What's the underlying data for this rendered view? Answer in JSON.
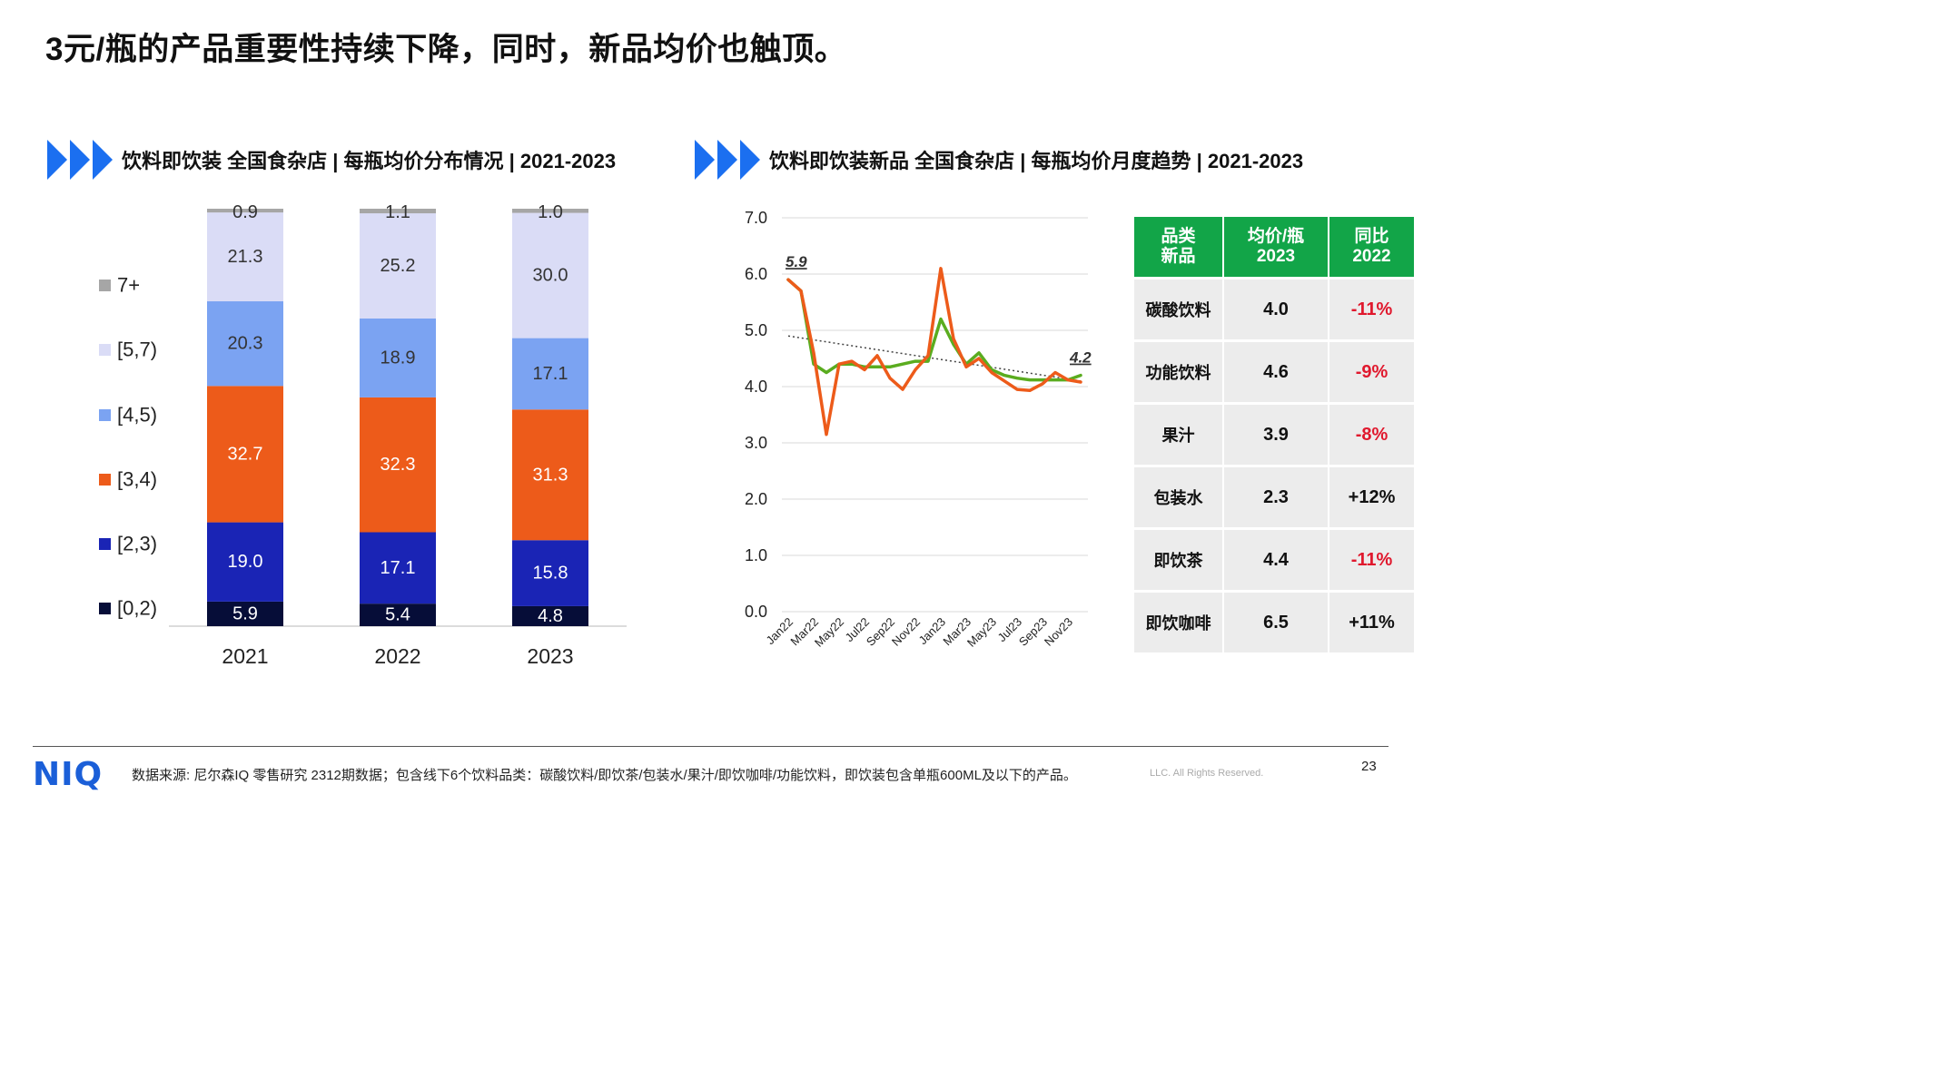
{
  "title": "3元/瓶的产品重要性持续下降，同时，新品均价也触顶。",
  "left_section": {
    "subtitle": "饮料即饮装 全国食杂店 | 每瓶均价分布情况 | 2021-2023"
  },
  "right_section": {
    "subtitle": "饮料即饮装新品 全国食杂店 | 每瓶均价月度趋势 | 2021-2023"
  },
  "colors": {
    "navy": "#060d38",
    "blue": "#1a24b5",
    "orange": "#ed5b1a",
    "mid_blue": "#7ba3f2",
    "lavender": "#dadcf6",
    "grey": "#a6a6a6",
    "green": "#5aac1f",
    "table_green": "#12a548",
    "red": "#e0182d"
  },
  "chart_data": [
    {
      "type": "bar",
      "stacked": true,
      "categories": [
        "2021",
        "2022",
        "2023"
      ],
      "series": [
        {
          "name": "[0,2)",
          "color": "#060d38",
          "values": [
            5.9,
            5.4,
            4.8
          ]
        },
        {
          "name": "[2,3)",
          "color": "#1a24b5",
          "values": [
            19.0,
            17.1,
            15.8
          ]
        },
        {
          "name": "[3,4)",
          "color": "#ed5b1a",
          "values": [
            32.7,
            32.3,
            31.3
          ]
        },
        {
          "name": "[4,5)",
          "color": "#7ba3f2",
          "values": [
            20.3,
            18.9,
            17.1
          ]
        },
        {
          "name": "[5,7)",
          "color": "#dadcf6",
          "values": [
            21.3,
            25.2,
            30.0
          ]
        },
        {
          "name": "7+",
          "color": "#a6a6a6",
          "values": [
            0.9,
            1.1,
            1.0
          ]
        }
      ],
      "legend_placement": "left"
    },
    {
      "type": "line",
      "x": [
        "Jan22",
        "Feb22",
        "Mar22",
        "Apr22",
        "May22",
        "Jun22",
        "Jul22",
        "Aug22",
        "Sep22",
        "Oct22",
        "Nov22",
        "Dec22",
        "Jan23",
        "Feb23",
        "Mar23",
        "Apr23",
        "May23",
        "Jun23",
        "Jul23",
        "Aug23",
        "Sep23",
        "Oct23",
        "Nov23",
        "Dec23"
      ],
      "tick_labels": [
        "Jan22",
        "Mar22",
        "May22",
        "Jul22",
        "Sep22",
        "Nov22",
        "Jan23",
        "Mar23",
        "May23",
        "Jul23",
        "Sep23",
        "Nov23"
      ],
      "series": [
        {
          "color": "#5aac1f",
          "values": [
            5.9,
            5.7,
            4.4,
            4.25,
            4.4,
            4.4,
            4.35,
            4.35,
            4.35,
            4.4,
            4.45,
            4.45,
            5.2,
            4.75,
            4.4,
            4.6,
            4.3,
            4.2,
            4.15,
            4.12,
            4.12,
            4.12,
            4.12,
            4.2
          ]
        },
        {
          "color": "#ed5b1a",
          "values": [
            5.9,
            5.7,
            4.6,
            3.15,
            4.4,
            4.45,
            4.3,
            4.55,
            4.15,
            3.95,
            4.3,
            4.55,
            6.1,
            4.85,
            4.35,
            4.5,
            4.25,
            4.1,
            3.95,
            3.93,
            4.05,
            4.25,
            4.12,
            4.08
          ]
        }
      ],
      "trendline": {
        "style": "dotted",
        "from": 4.9,
        "to": 4.1
      },
      "annotations": [
        {
          "label": "5.9",
          "at": "Jan22",
          "value": 5.9
        },
        {
          "label": "4.2",
          "at": "Dec23",
          "value": 4.2
        }
      ],
      "ylim": [
        0,
        7
      ],
      "yticks": [
        "0.0",
        "1.0",
        "2.0",
        "3.0",
        "4.0",
        "5.0",
        "6.0",
        "7.0"
      ],
      "grid": true
    },
    {
      "type": "table",
      "headers": [
        "品类\n新品",
        "均价/瓶\n2023",
        "同比\n2022"
      ],
      "rows": [
        {
          "category": "碳酸饮料",
          "price": "4.0",
          "yoy": "-11%",
          "negative": true
        },
        {
          "category": "功能饮料",
          "price": "4.6",
          "yoy": "-9%",
          "negative": true
        },
        {
          "category": "果汁",
          "price": "3.9",
          "yoy": "-8%",
          "negative": true
        },
        {
          "category": "包装水",
          "price": "2.3",
          "yoy": "+12%",
          "negative": false
        },
        {
          "category": "即饮茶",
          "price": "4.4",
          "yoy": "-11%",
          "negative": true
        },
        {
          "category": "即饮咖啡",
          "price": "6.5",
          "yoy": "+11%",
          "negative": false
        }
      ]
    }
  ],
  "footer": {
    "logo": "NIQ",
    "note": "数据来源: 尼尔森IQ 零售研究 2312期数据；包含线下6个饮料品类：碳酸饮料/即饮茶/包装水/果汁/即饮咖啡/功能饮料，即饮装包含单瓶600ML及以下的产品。",
    "copyright": "LLC. All Rights Reserved.",
    "page_number": "23"
  }
}
